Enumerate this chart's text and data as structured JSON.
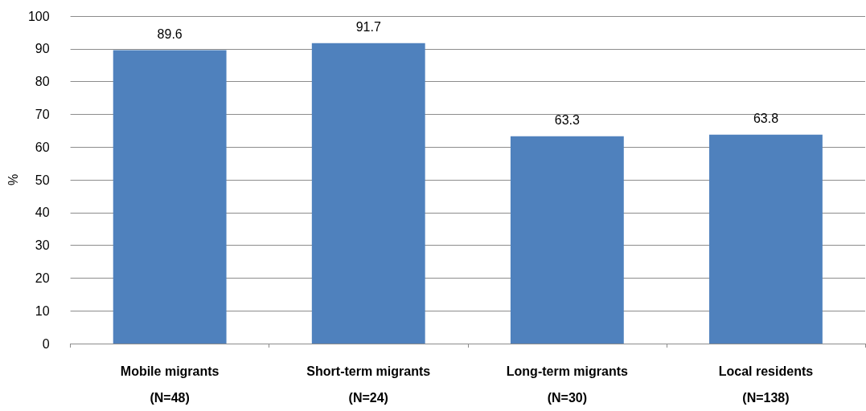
{
  "chart_data": {
    "type": "bar",
    "ylabel": "%",
    "categories": [
      "Mobile migrants\n(N=48)",
      "Short-term migrants\n(N=24)",
      "Long-term migrants\n(N=30)",
      "Local residents\n(N=138)"
    ],
    "values": [
      89.6,
      91.7,
      63.3,
      63.8
    ],
    "color": "#4f81bd",
    "ylim": [
      0,
      100
    ],
    "yticks": [
      0,
      10,
      20,
      30,
      40,
      50,
      60,
      70,
      80,
      90,
      100
    ],
    "grid": "y",
    "data_labels": true
  }
}
